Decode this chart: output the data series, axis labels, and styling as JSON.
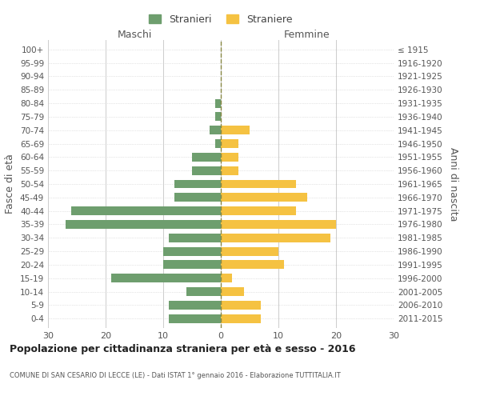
{
  "age_groups": [
    "0-4",
    "5-9",
    "10-14",
    "15-19",
    "20-24",
    "25-29",
    "30-34",
    "35-39",
    "40-44",
    "45-49",
    "50-54",
    "55-59",
    "60-64",
    "65-69",
    "70-74",
    "75-79",
    "80-84",
    "85-89",
    "90-94",
    "95-99",
    "100+"
  ],
  "birth_years": [
    "2011-2015",
    "2006-2010",
    "2001-2005",
    "1996-2000",
    "1991-1995",
    "1986-1990",
    "1981-1985",
    "1976-1980",
    "1971-1975",
    "1966-1970",
    "1961-1965",
    "1956-1960",
    "1951-1955",
    "1946-1950",
    "1941-1945",
    "1936-1940",
    "1931-1935",
    "1926-1930",
    "1921-1925",
    "1916-1920",
    "≤ 1915"
  ],
  "males": [
    9,
    9,
    6,
    19,
    10,
    10,
    9,
    27,
    26,
    8,
    8,
    5,
    5,
    1,
    2,
    1,
    1,
    0,
    0,
    0,
    0
  ],
  "females": [
    7,
    7,
    4,
    2,
    11,
    10,
    19,
    20,
    13,
    15,
    13,
    3,
    3,
    3,
    5,
    0,
    0,
    0,
    0,
    0,
    0
  ],
  "male_color": "#6e9e6e",
  "female_color": "#f5c242",
  "grid_color": "#cccccc",
  "dashed_line_color": "#888844",
  "bg_color": "#ffffff",
  "title": "Popolazione per cittadinanza straniera per età e sesso - 2016",
  "subtitle": "COMUNE DI SAN CESARIO DI LECCE (LE) - Dati ISTAT 1° gennaio 2016 - Elaborazione TUTTITALIA.IT",
  "xlabel_left": "Maschi",
  "xlabel_right": "Femmine",
  "ylabel_left": "Fasce di età",
  "ylabel_right": "Anni di nascita",
  "xlim": 30,
  "legend_male": "Stranieri",
  "legend_female": "Straniere"
}
